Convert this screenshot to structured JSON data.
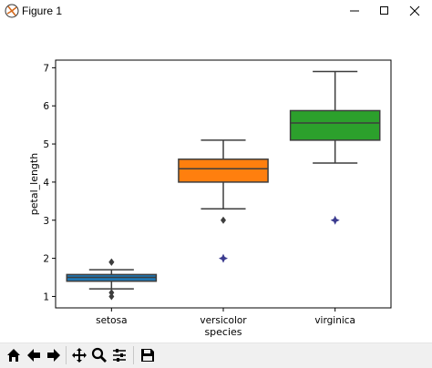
{
  "window": {
    "title": "Figure 1",
    "controls": [
      "minimize",
      "maximize",
      "close"
    ]
  },
  "toolbar": {
    "buttons": [
      {
        "name": "home-icon",
        "tooltip": "Home"
      },
      {
        "name": "back-icon",
        "tooltip": "Back"
      },
      {
        "name": "forward-icon",
        "tooltip": "Forward"
      },
      {
        "name": "pan-icon",
        "tooltip": "Pan"
      },
      {
        "name": "zoom-icon",
        "tooltip": "Zoom"
      },
      {
        "name": "configure-subplots-icon",
        "tooltip": "Subplots"
      },
      {
        "name": "save-icon",
        "tooltip": "Save"
      }
    ]
  },
  "chart_data": {
    "type": "box",
    "xlabel": "species",
    "ylabel": "petal_length",
    "categories": [
      "setosa",
      "versicolor",
      "virginica"
    ],
    "ylim": [
      0.7,
      7.2
    ],
    "yticks": [
      1,
      2,
      3,
      4,
      5,
      6,
      7
    ],
    "grid": false,
    "boxes": [
      {
        "category": "setosa",
        "color": "#1f77b4",
        "whisker_low": 1.2,
        "q1": 1.4,
        "median": 1.5,
        "q3": 1.575,
        "whisker_high": 1.7,
        "outliers": [
          1.0,
          1.1,
          1.9,
          1.9
        ]
      },
      {
        "category": "versicolor",
        "color": "#ff7f0e",
        "whisker_low": 3.3,
        "q1": 4.0,
        "median": 4.35,
        "q3": 4.6,
        "whisker_high": 5.1,
        "outliers": [
          3.0
        ]
      },
      {
        "category": "virginica",
        "color": "#2ca02c",
        "whisker_low": 4.5,
        "q1": 5.1,
        "median": 5.55,
        "q3": 5.875,
        "whisker_high": 6.9,
        "outliers": []
      }
    ],
    "points": [
      {
        "category": "versicolor",
        "y": 2.0,
        "color": "#3b3b8f"
      },
      {
        "category": "virginica",
        "y": 3.0,
        "color": "#3b3b8f"
      }
    ]
  }
}
